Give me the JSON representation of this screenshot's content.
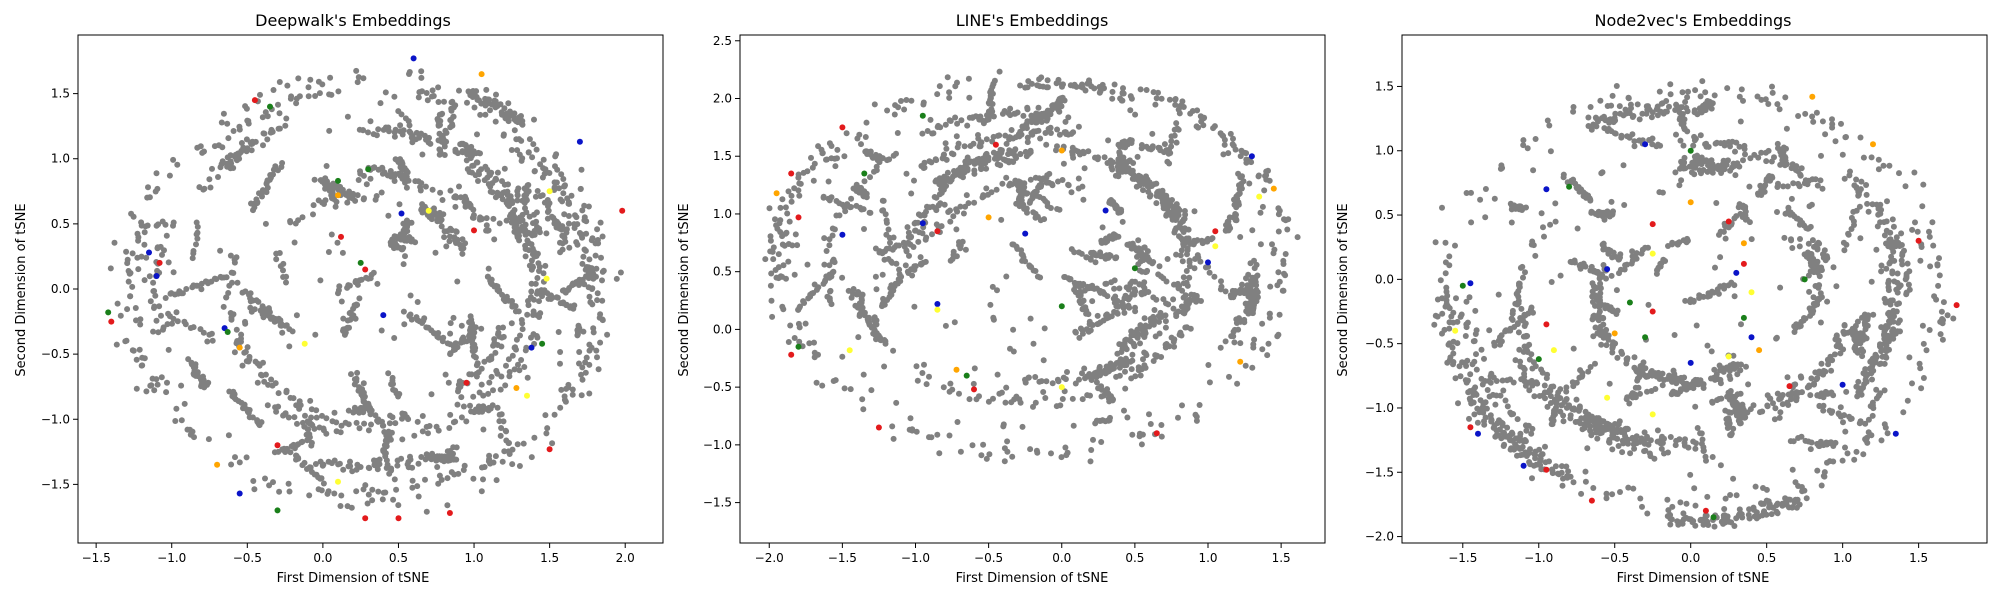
{
  "colors": {
    "gray": "#808080",
    "red": "#e31a1c",
    "blue": "#0a14c8",
    "green": "#1a7f1a",
    "orange": "#ffa500",
    "yellow": "#ffff33"
  },
  "chart_data": [
    {
      "type": "scatter",
      "title": "Deepwalk's Embeddings",
      "xlabel": "First Dimension of tSNE",
      "ylabel": "Second Dimension of tSNE",
      "xlim": [
        -1.62,
        2.25
      ],
      "ylim": [
        -1.95,
        1.95
      ],
      "xticks": [
        -1.5,
        -1.0,
        -0.5,
        0.0,
        0.5,
        1.0,
        1.5,
        2.0
      ],
      "yticks": [
        -1.5,
        -1.0,
        -0.5,
        0.0,
        0.5,
        1.0,
        1.5
      ],
      "xtick_labels": [
        "−1.5",
        "−1.0",
        "−0.5",
        "0.0",
        "0.5",
        "1.0",
        "1.5",
        "2.0"
      ],
      "ytick_labels": [
        "−1.5",
        "−1.0",
        "−0.5",
        "0.0",
        "0.5",
        "1.0",
        "1.5"
      ],
      "gray_shape": {
        "cx": 0.3,
        "cy": 0.0,
        "rx": 1.7,
        "ry": 1.75
      },
      "colored_points": [
        {
          "x": -0.45,
          "y": 1.45,
          "c": "red"
        },
        {
          "x": 1.0,
          "y": 0.45,
          "c": "red"
        },
        {
          "x": 0.28,
          "y": 0.15,
          "c": "red"
        },
        {
          "x": -1.08,
          "y": 0.2,
          "c": "red"
        },
        {
          "x": 1.98,
          "y": 0.6,
          "c": "red"
        },
        {
          "x": -1.4,
          "y": -0.25,
          "c": "red"
        },
        {
          "x": 0.95,
          "y": -0.72,
          "c": "red"
        },
        {
          "x": -0.3,
          "y": -1.2,
          "c": "red"
        },
        {
          "x": 1.5,
          "y": -1.23,
          "c": "red"
        },
        {
          "x": 0.28,
          "y": -1.76,
          "c": "red"
        },
        {
          "x": 0.5,
          "y": -1.76,
          "c": "red"
        },
        {
          "x": 0.84,
          "y": -1.72,
          "c": "red"
        },
        {
          "x": 0.12,
          "y": 0.4,
          "c": "red"
        },
        {
          "x": 0.52,
          "y": 0.58,
          "c": "blue"
        },
        {
          "x": -1.15,
          "y": 0.28,
          "c": "blue"
        },
        {
          "x": -1.1,
          "y": 0.1,
          "c": "blue"
        },
        {
          "x": 0.4,
          "y": -0.2,
          "c": "blue"
        },
        {
          "x": -0.65,
          "y": -0.3,
          "c": "blue"
        },
        {
          "x": -0.55,
          "y": -1.57,
          "c": "blue"
        },
        {
          "x": 1.7,
          "y": 1.13,
          "c": "blue"
        },
        {
          "x": 0.6,
          "y": 1.77,
          "c": "blue"
        },
        {
          "x": 1.38,
          "y": -0.45,
          "c": "blue"
        },
        {
          "x": 0.3,
          "y": 0.92,
          "c": "green"
        },
        {
          "x": 0.1,
          "y": 0.83,
          "c": "green"
        },
        {
          "x": 0.25,
          "y": 0.2,
          "c": "green"
        },
        {
          "x": -1.42,
          "y": -0.18,
          "c": "green"
        },
        {
          "x": -0.63,
          "y": -0.33,
          "c": "green"
        },
        {
          "x": -0.35,
          "y": 1.4,
          "c": "green"
        },
        {
          "x": -0.3,
          "y": -1.7,
          "c": "green"
        },
        {
          "x": 1.45,
          "y": -0.42,
          "c": "green"
        },
        {
          "x": 0.7,
          "y": 0.6,
          "c": "yellow"
        },
        {
          "x": 1.5,
          "y": 0.75,
          "c": "yellow"
        },
        {
          "x": -0.12,
          "y": -0.42,
          "c": "yellow"
        },
        {
          "x": 1.35,
          "y": -0.82,
          "c": "yellow"
        },
        {
          "x": 1.48,
          "y": 0.08,
          "c": "yellow"
        },
        {
          "x": 0.1,
          "y": -1.48,
          "c": "yellow"
        },
        {
          "x": -0.7,
          "y": -1.35,
          "c": "orange"
        },
        {
          "x": 1.28,
          "y": -0.76,
          "c": "orange"
        },
        {
          "x": 0.1,
          "y": 0.72,
          "c": "orange"
        },
        {
          "x": 1.05,
          "y": 1.65,
          "c": "orange"
        },
        {
          "x": -0.55,
          "y": -0.45,
          "c": "orange"
        }
      ]
    },
    {
      "type": "scatter",
      "title": "LINE's Embeddings",
      "xlabel": "First Dimension of tSNE",
      "ylabel": "Second Dimension of tSNE",
      "xlim": [
        -2.2,
        1.8
      ],
      "ylim": [
        -1.85,
        2.55
      ],
      "xticks": [
        -2.0,
        -1.5,
        -1.0,
        -0.5,
        0.0,
        0.5,
        1.0,
        1.5
      ],
      "yticks": [
        -1.5,
        -1.0,
        -0.5,
        0.0,
        0.5,
        1.0,
        1.5,
        2.0,
        2.5
      ],
      "xtick_labels": [
        "−2.0",
        "−1.5",
        "−1.0",
        "−0.5",
        "0.0",
        "0.5",
        "1.0",
        "1.5"
      ],
      "ytick_labels": [
        "−1.5",
        "−1.0",
        "−0.5",
        "0.0",
        "0.5",
        "1.0",
        "1.5",
        "2.0",
        "2.5"
      ],
      "gray_shape": {
        "cx": -0.2,
        "cy": 0.55,
        "rx": 1.85,
        "ry": 1.75
      },
      "colored_points": [
        {
          "x": -1.85,
          "y": 1.35,
          "c": "red"
        },
        {
          "x": -1.8,
          "y": 0.97,
          "c": "red"
        },
        {
          "x": -1.85,
          "y": -0.22,
          "c": "red"
        },
        {
          "x": -1.25,
          "y": -0.85,
          "c": "red"
        },
        {
          "x": -0.6,
          "y": -0.52,
          "c": "red"
        },
        {
          "x": 0.65,
          "y": -0.9,
          "c": "red"
        },
        {
          "x": -0.85,
          "y": 0.85,
          "c": "red"
        },
        {
          "x": -0.45,
          "y": 1.6,
          "c": "red"
        },
        {
          "x": 1.05,
          "y": 0.85,
          "c": "red"
        },
        {
          "x": -1.5,
          "y": 1.75,
          "c": "red"
        },
        {
          "x": -0.95,
          "y": 0.92,
          "c": "blue"
        },
        {
          "x": -0.25,
          "y": 0.83,
          "c": "blue"
        },
        {
          "x": 0.3,
          "y": 1.03,
          "c": "blue"
        },
        {
          "x": 1.0,
          "y": 0.58,
          "c": "blue"
        },
        {
          "x": -1.5,
          "y": 0.82,
          "c": "blue"
        },
        {
          "x": 1.3,
          "y": 1.5,
          "c": "blue"
        },
        {
          "x": -0.85,
          "y": 0.22,
          "c": "blue"
        },
        {
          "x": -0.95,
          "y": 1.85,
          "c": "green"
        },
        {
          "x": -1.35,
          "y": 1.35,
          "c": "green"
        },
        {
          "x": -1.8,
          "y": -0.15,
          "c": "green"
        },
        {
          "x": -0.65,
          "y": -0.4,
          "c": "green"
        },
        {
          "x": 0.0,
          "y": 0.2,
          "c": "green"
        },
        {
          "x": 0.5,
          "y": 0.53,
          "c": "green"
        },
        {
          "x": -0.85,
          "y": 0.17,
          "c": "yellow"
        },
        {
          "x": -1.45,
          "y": -0.18,
          "c": "yellow"
        },
        {
          "x": 1.35,
          "y": 1.15,
          "c": "yellow"
        },
        {
          "x": 0.0,
          "y": -0.5,
          "c": "yellow"
        },
        {
          "x": 1.05,
          "y": 0.72,
          "c": "yellow"
        },
        {
          "x": -1.95,
          "y": 1.18,
          "c": "orange"
        },
        {
          "x": 0.0,
          "y": 1.55,
          "c": "orange"
        },
        {
          "x": -0.5,
          "y": 0.97,
          "c": "orange"
        },
        {
          "x": 1.45,
          "y": 1.22,
          "c": "orange"
        },
        {
          "x": 1.22,
          "y": -0.28,
          "c": "orange"
        },
        {
          "x": -0.72,
          "y": -0.35,
          "c": "orange"
        }
      ]
    },
    {
      "type": "scatter",
      "title": "Node2vec's Embeddings",
      "xlabel": "First Dimension of tSNE",
      "ylabel": "Second Dimension of tSNE",
      "xlim": [
        -1.9,
        1.95
      ],
      "ylim": [
        -2.05,
        1.9
      ],
      "xticks": [
        -1.5,
        -1.0,
        -0.5,
        0.0,
        0.5,
        1.0,
        1.5
      ],
      "yticks": [
        -2.0,
        -1.5,
        -1.0,
        -0.5,
        0.0,
        0.5,
        1.0,
        1.5
      ],
      "xtick_labels": [
        "−1.5",
        "−1.0",
        "−0.5",
        "0.0",
        "0.5",
        "1.0",
        "1.5"
      ],
      "ytick_labels": [
        "−2.0",
        "−1.5",
        "−1.0",
        "−0.5",
        "0.0",
        "0.5",
        "1.0",
        "1.5"
      ],
      "gray_shape": {
        "cx": 0.0,
        "cy": -0.15,
        "rx": 1.75,
        "ry": 1.75
      },
      "colored_points": [
        {
          "x": -0.25,
          "y": 0.43,
          "c": "red"
        },
        {
          "x": 0.35,
          "y": 0.12,
          "c": "red"
        },
        {
          "x": -0.95,
          "y": -0.35,
          "c": "red"
        },
        {
          "x": -1.45,
          "y": -1.15,
          "c": "red"
        },
        {
          "x": -0.95,
          "y": -1.48,
          "c": "red"
        },
        {
          "x": -0.65,
          "y": -1.72,
          "c": "red"
        },
        {
          "x": 0.1,
          "y": -1.8,
          "c": "red"
        },
        {
          "x": 1.5,
          "y": 0.3,
          "c": "red"
        },
        {
          "x": 1.75,
          "y": -0.2,
          "c": "red"
        },
        {
          "x": 0.65,
          "y": -0.83,
          "c": "red"
        },
        {
          "x": -0.25,
          "y": -0.25,
          "c": "red"
        },
        {
          "x": 0.25,
          "y": 0.45,
          "c": "red"
        },
        {
          "x": -0.95,
          "y": 0.7,
          "c": "blue"
        },
        {
          "x": -0.55,
          "y": 0.08,
          "c": "blue"
        },
        {
          "x": -1.45,
          "y": -0.03,
          "c": "blue"
        },
        {
          "x": 0.0,
          "y": -0.65,
          "c": "blue"
        },
        {
          "x": 0.4,
          "y": -0.45,
          "c": "blue"
        },
        {
          "x": 1.0,
          "y": -0.82,
          "c": "blue"
        },
        {
          "x": 1.35,
          "y": -1.2,
          "c": "blue"
        },
        {
          "x": -1.1,
          "y": -1.45,
          "c": "blue"
        },
        {
          "x": -1.4,
          "y": -1.2,
          "c": "blue"
        },
        {
          "x": 0.3,
          "y": 0.05,
          "c": "blue"
        },
        {
          "x": -0.3,
          "y": 1.05,
          "c": "blue"
        },
        {
          "x": -0.8,
          "y": 0.72,
          "c": "green"
        },
        {
          "x": 0.0,
          "y": 1.0,
          "c": "green"
        },
        {
          "x": -1.0,
          "y": -0.62,
          "c": "green"
        },
        {
          "x": -0.3,
          "y": -0.45,
          "c": "green"
        },
        {
          "x": 0.35,
          "y": -0.3,
          "c": "green"
        },
        {
          "x": 0.15,
          "y": -1.85,
          "c": "green"
        },
        {
          "x": 0.75,
          "y": 0.0,
          "c": "green"
        },
        {
          "x": -1.5,
          "y": -0.05,
          "c": "green"
        },
        {
          "x": -0.4,
          "y": -0.18,
          "c": "green"
        },
        {
          "x": -0.25,
          "y": -1.05,
          "c": "yellow"
        },
        {
          "x": -0.55,
          "y": -0.92,
          "c": "yellow"
        },
        {
          "x": -0.25,
          "y": 0.2,
          "c": "yellow"
        },
        {
          "x": 0.25,
          "y": -0.6,
          "c": "yellow"
        },
        {
          "x": -0.9,
          "y": -0.55,
          "c": "yellow"
        },
        {
          "x": 0.4,
          "y": -0.1,
          "c": "yellow"
        },
        {
          "x": -1.55,
          "y": -0.4,
          "c": "yellow"
        },
        {
          "x": 0.35,
          "y": 0.28,
          "c": "orange"
        },
        {
          "x": 0.8,
          "y": 1.42,
          "c": "orange"
        },
        {
          "x": 1.2,
          "y": 1.05,
          "c": "orange"
        },
        {
          "x": -0.5,
          "y": -0.42,
          "c": "orange"
        },
        {
          "x": 0.45,
          "y": -0.55,
          "c": "orange"
        },
        {
          "x": 0.0,
          "y": 0.6,
          "c": "orange"
        }
      ]
    }
  ]
}
